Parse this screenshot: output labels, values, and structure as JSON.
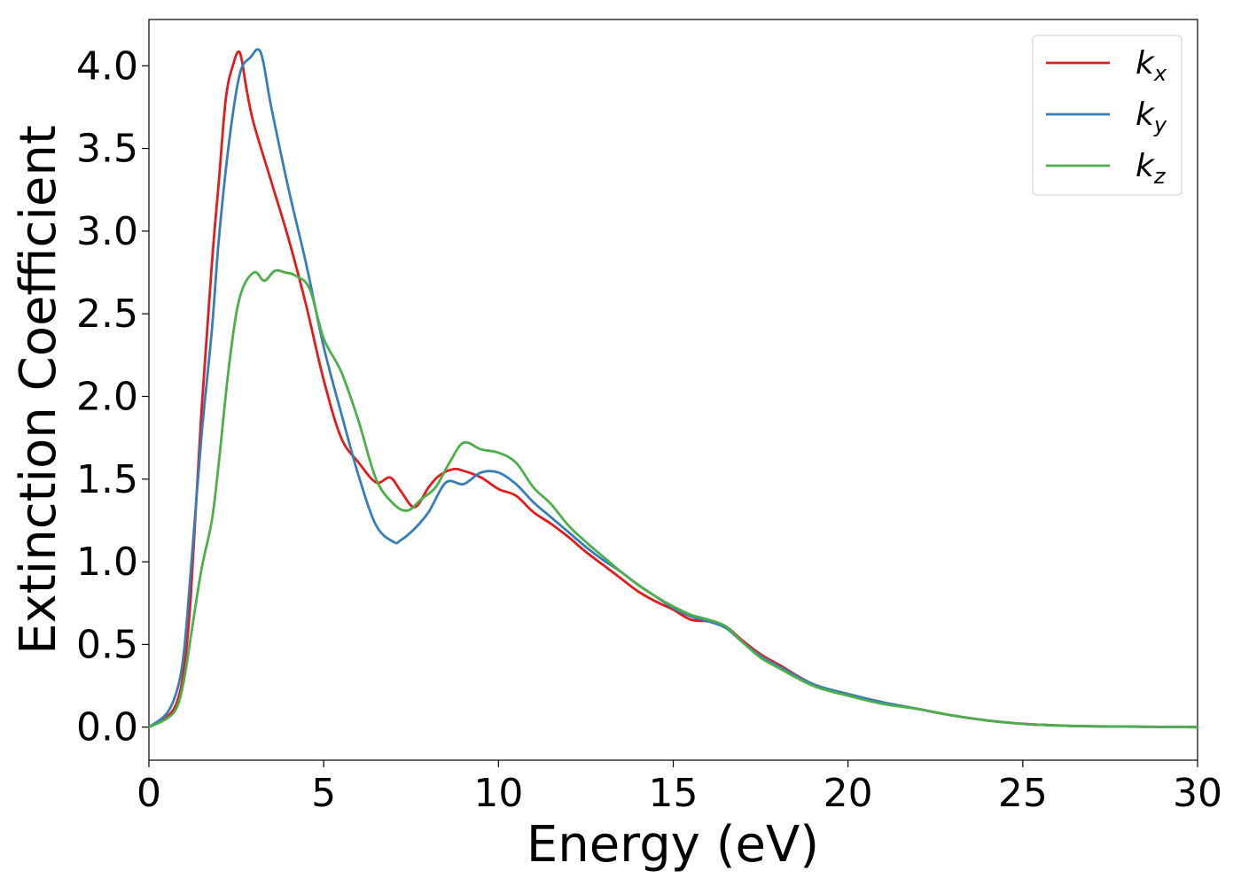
{
  "chart_data": {
    "type": "line",
    "xlabel": "Energy (eV)",
    "ylabel": "Extinction Coefficient",
    "xlim": [
      0,
      30
    ],
    "ylim": [
      -0.2,
      4.28
    ],
    "x_ticks": [
      0,
      5,
      10,
      15,
      20,
      25,
      30
    ],
    "x_tick_labels": [
      "0",
      "5",
      "10",
      "15",
      "20",
      "25",
      "30"
    ],
    "y_ticks": [
      0.0,
      0.5,
      1.0,
      1.5,
      2.0,
      2.5,
      3.0,
      3.5,
      4.0
    ],
    "y_tick_labels": [
      "0.0",
      "0.5",
      "1.0",
      "1.5",
      "2.0",
      "2.5",
      "3.0",
      "3.5",
      "4.0"
    ],
    "grid": false,
    "legend_position": "top-right",
    "series": [
      {
        "name": "k_x",
        "label_main": "k",
        "label_sub": "x",
        "color": "#e41a1c",
        "x": [
          0,
          0.5,
          0.8,
          1.0,
          1.2,
          1.5,
          1.8,
          2.0,
          2.2,
          2.4,
          2.6,
          2.8,
          3.0,
          3.5,
          4.0,
          4.5,
          5.0,
          5.5,
          6.0,
          6.5,
          6.9,
          7.2,
          7.6,
          8.0,
          8.3,
          8.7,
          9.0,
          9.5,
          10.0,
          10.5,
          11.0,
          11.5,
          12.0,
          12.5,
          13.0,
          13.5,
          14.0,
          14.5,
          15.0,
          15.5,
          16.0,
          16.5,
          17.0,
          17.5,
          18.0,
          19.0,
          20.0,
          21.0,
          22.0,
          23.0,
          24.0,
          25.0,
          26.0,
          27.0,
          30.0
        ],
        "y": [
          0.0,
          0.06,
          0.15,
          0.35,
          0.8,
          1.9,
          2.8,
          3.3,
          3.8,
          4.0,
          4.08,
          3.85,
          3.65,
          3.3,
          2.95,
          2.55,
          2.1,
          1.75,
          1.6,
          1.48,
          1.51,
          1.43,
          1.33,
          1.45,
          1.52,
          1.56,
          1.55,
          1.51,
          1.44,
          1.4,
          1.3,
          1.23,
          1.15,
          1.06,
          0.98,
          0.9,
          0.82,
          0.76,
          0.71,
          0.65,
          0.64,
          0.61,
          0.52,
          0.44,
          0.38,
          0.26,
          0.2,
          0.15,
          0.11,
          0.07,
          0.04,
          0.02,
          0.01,
          0.005,
          0.0
        ]
      },
      {
        "name": "k_y",
        "label_main": "k",
        "label_sub": "y",
        "color": "#377eb8",
        "x": [
          0,
          0.5,
          0.8,
          1.0,
          1.2,
          1.5,
          1.8,
          2.0,
          2.3,
          2.6,
          2.9,
          3.2,
          3.5,
          4.0,
          4.5,
          5.0,
          5.5,
          6.0,
          6.5,
          7.0,
          7.2,
          7.6,
          8.0,
          8.5,
          9.0,
          9.5,
          10.0,
          10.5,
          11.0,
          11.5,
          12.0,
          12.5,
          13.0,
          13.5,
          14.0,
          14.5,
          15.0,
          15.5,
          16.0,
          16.5,
          17.0,
          17.5,
          18.0,
          19.0,
          20.0,
          21.0,
          22.0,
          23.0,
          24.0,
          25.0,
          26.0,
          27.0,
          30.0
        ],
        "y": [
          0.0,
          0.08,
          0.22,
          0.45,
          0.95,
          1.75,
          2.4,
          2.95,
          3.55,
          3.95,
          4.05,
          4.08,
          3.75,
          3.25,
          2.8,
          2.3,
          1.9,
          1.52,
          1.22,
          1.12,
          1.13,
          1.2,
          1.3,
          1.48,
          1.47,
          1.54,
          1.54,
          1.47,
          1.36,
          1.27,
          1.18,
          1.09,
          1.01,
          0.94,
          0.86,
          0.79,
          0.72,
          0.67,
          0.64,
          0.6,
          0.51,
          0.43,
          0.37,
          0.26,
          0.2,
          0.15,
          0.11,
          0.07,
          0.04,
          0.02,
          0.01,
          0.005,
          0.0
        ]
      },
      {
        "name": "k_z",
        "label_main": "k",
        "label_sub": "z",
        "color": "#4daf4a",
        "x": [
          0,
          0.5,
          0.8,
          1.0,
          1.2,
          1.5,
          1.8,
          2.0,
          2.3,
          2.6,
          3.0,
          3.3,
          3.6,
          3.9,
          4.2,
          4.6,
          5.0,
          5.5,
          6.0,
          6.5,
          7.0,
          7.4,
          7.8,
          8.2,
          8.6,
          9.0,
          9.5,
          10.0,
          10.5,
          11.0,
          11.5,
          12.0,
          12.5,
          13.0,
          13.5,
          14.0,
          14.5,
          15.0,
          15.5,
          16.0,
          16.5,
          17.0,
          17.5,
          18.0,
          19.0,
          20.0,
          21.0,
          22.0,
          23.0,
          24.0,
          25.0,
          26.0,
          27.0,
          30.0
        ],
        "y": [
          0.0,
          0.05,
          0.12,
          0.28,
          0.55,
          0.95,
          1.25,
          1.6,
          2.2,
          2.6,
          2.75,
          2.7,
          2.76,
          2.75,
          2.73,
          2.65,
          2.35,
          2.15,
          1.85,
          1.5,
          1.35,
          1.31,
          1.38,
          1.45,
          1.6,
          1.72,
          1.68,
          1.66,
          1.6,
          1.45,
          1.35,
          1.22,
          1.12,
          1.03,
          0.94,
          0.86,
          0.79,
          0.73,
          0.68,
          0.65,
          0.61,
          0.51,
          0.42,
          0.36,
          0.25,
          0.19,
          0.14,
          0.11,
          0.07,
          0.04,
          0.02,
          0.01,
          0.005,
          0.0
        ]
      }
    ]
  }
}
